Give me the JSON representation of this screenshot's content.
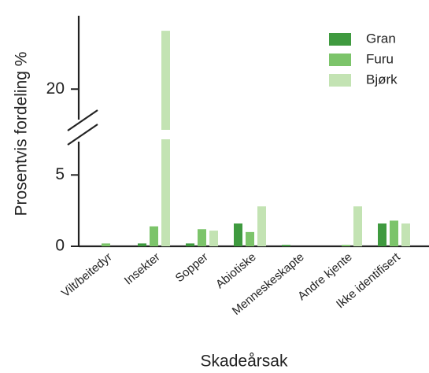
{
  "chart_data": {
    "type": "bar",
    "y_label": "Prosentvis fordeling %",
    "x_label": "Skadeårsak",
    "categories": [
      "Vilt/beitedyr",
      "Insekter",
      "Sopper",
      "Abiotiske",
      "Menneskeskapte",
      "Andre kjente",
      "Ikke identifisert"
    ],
    "series": [
      {
        "name": "Gran",
        "color": "#3f9a3f",
        "values": [
          0,
          0.2,
          0.2,
          1.6,
          0.1,
          0,
          1.6
        ]
      },
      {
        "name": "Furu",
        "color": "#7cc46a",
        "values": [
          0.2,
          1.4,
          1.2,
          1.0,
          0,
          0.1,
          1.8
        ]
      },
      {
        "name": "Bjørk",
        "color": "#c3e3b3",
        "values": [
          0,
          24.3,
          1.1,
          2.8,
          0,
          2.8,
          1.6
        ]
      }
    ],
    "ylim": [
      0,
      25
    ],
    "ybreak": [
      7.5,
      17
    ],
    "yticks": [
      0,
      5,
      20
    ],
    "legend": "top-right",
    "grid": false
  }
}
